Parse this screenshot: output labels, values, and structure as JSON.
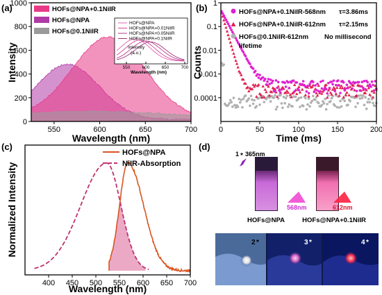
{
  "panels": {
    "a": "(a)",
    "b": "(b)",
    "c": "(c)",
    "d": "(d)"
  },
  "chart_data": [
    {
      "panel": "a",
      "type": "area",
      "xlabel": "Wavelength (nm)",
      "ylabel": "Intensity",
      "xlim": [
        525,
        700
      ],
      "ylim": [
        0,
        1000
      ],
      "xticks": [
        550,
        600,
        650,
        700
      ],
      "yticks": [
        0,
        200,
        400,
        600,
        800,
        1000
      ],
      "legend_position": "top-left",
      "series": [
        {
          "name": "HOFs@NPA+0.1NiIR",
          "color": "#e83a86",
          "peak": 610,
          "height": 680,
          "sigma": 40,
          "base": 40
        },
        {
          "name": "HOFs@NPA",
          "color": "#b03aa6",
          "peak": 565,
          "height": 455,
          "sigma": 34,
          "base": 30
        },
        {
          "name": "HOFs@0.1NiIR",
          "color": "#9a9a9a",
          "peak": 600,
          "height": 60,
          "sigma": 90,
          "base": 30
        }
      ],
      "inset": {
        "ylabel": "Intensity",
        "yunit": "(a.u.)",
        "xlabel": "Wavelength (nm)",
        "xlim": [
          525,
          700
        ],
        "xticks": [
          550,
          600,
          650,
          700
        ],
        "series": [
          {
            "name": "HOFs@NPA",
            "color": "#e060b0",
            "peak": 572,
            "height": 0.95
          },
          {
            "name": "HOFs@NPA+0.01NiIR",
            "color": "#d04898",
            "peak": 585,
            "height": 0.9
          },
          {
            "name": "HOFs@NPA+0.05NiIR",
            "color": "#b83a8a",
            "peak": 600,
            "height": 0.86
          },
          {
            "name": "HOFs@NPA+0.1NiIR",
            "color": "#a03278",
            "peak": 612,
            "height": 0.82
          }
        ]
      }
    },
    {
      "panel": "b",
      "type": "scatter",
      "xlabel": "Time (ms)",
      "ylabel": "Counts",
      "xlim": [
        0,
        200
      ],
      "ylim_log": [
        1e-05,
        1
      ],
      "xticks": [
        0,
        50,
        100,
        150,
        200
      ],
      "yticks": [
        "1E-5",
        "0.0001",
        "0.001",
        "0.01",
        "0.1",
        "1"
      ],
      "ytick_labels_shown": [
        "0.0001",
        "0.001",
        "0.01",
        "0.1",
        "1"
      ],
      "legend_position": "top-right",
      "series": [
        {
          "name": "HOFs@NPA+0.1NiIR-568nm",
          "tau": "τ=3.86ms",
          "tau_ms": 3.86,
          "color": "#e020d0",
          "marker": "circle",
          "floor": 0.0003
        },
        {
          "name": "HOFs@NPA+0.1NiIR-612nm",
          "tau": "τ=2.15ms",
          "tau_ms": 2.15,
          "color": "#e0204e",
          "marker": "triangle",
          "floor": 0.0002
        },
        {
          "name": "HOFs@0.1NiIR-612nm",
          "tau": "No millisecond",
          "tau_line2": "lifetime",
          "color": "#b0b0b0",
          "marker": "circle",
          "floor": 8e-05
        }
      ]
    },
    {
      "panel": "c",
      "type": "line",
      "xlabel": "Wavelength (nm)",
      "ylabel": "Normalized Intensity",
      "xlim": [
        350,
        700
      ],
      "xticks": [
        400,
        450,
        500,
        550,
        600,
        650,
        700
      ],
      "legend_position": "top-right",
      "overlap_range": [
        528,
        605
      ],
      "series": [
        {
          "name": "HOFs@NPA",
          "color": "#d9541e",
          "style": "solid",
          "peak": 568
        },
        {
          "name": "NiIR-Absorption",
          "color": "#c0306e",
          "style": "dashed",
          "peak": 523
        }
      ]
    }
  ],
  "photos": {
    "excitation": "365nm",
    "step1": "1",
    "step2": "2",
    "step3": "3",
    "step4": "4",
    "vial1_caption": "HOFs@NPA",
    "vial1_emission": "568nm",
    "vial2_caption": "HOFs@NPA+0.1NiIR",
    "vial2_emission": "612nm"
  }
}
